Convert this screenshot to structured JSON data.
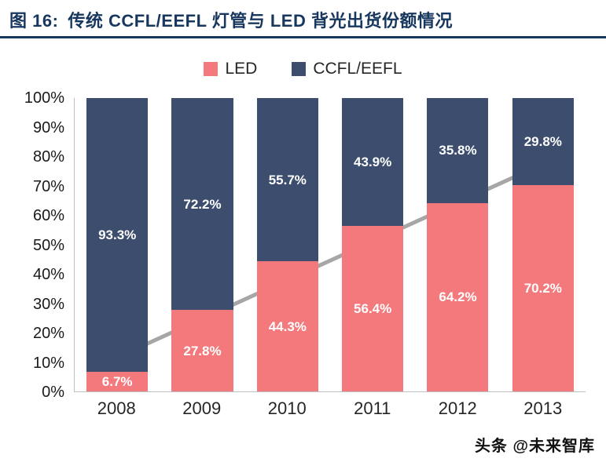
{
  "header": {
    "figure_label": "图 16:",
    "title": "传统 CCFL/EEFL 灯管与 LED 背光出货份额情况"
  },
  "legend": {
    "items": [
      {
        "label": "LED",
        "color": "#F4797C"
      },
      {
        "label": "CCFL/EEFL",
        "color": "#3C4D6E"
      }
    ]
  },
  "watermark": "头条 @未来智库",
  "colors": {
    "title": "#17375E",
    "rule": "#17375E",
    "arrow": "#A6A6A6",
    "axis": "#BFBFBF",
    "bar_value_label": "#FFFFFF"
  },
  "chart_data": {
    "type": "bar",
    "stacked": true,
    "title": "传统 CCFL/EEFL 灯管与 LED 背光出货份额情况",
    "categories": [
      "2008",
      "2009",
      "2010",
      "2011",
      "2012",
      "2013"
    ],
    "series": [
      {
        "name": "LED",
        "color": "#F4797C",
        "values": [
          6.7,
          27.8,
          44.3,
          56.4,
          64.2,
          70.2
        ]
      },
      {
        "name": "CCFL/EEFL",
        "color": "#3C4D6E",
        "values": [
          93.3,
          72.2,
          55.7,
          43.9,
          35.8,
          29.8
        ]
      }
    ],
    "xlabel": "",
    "ylabel": "",
    "ylim": [
      0,
      100
    ],
    "yticks": [
      0,
      10,
      20,
      30,
      40,
      50,
      60,
      70,
      80,
      90,
      100
    ],
    "ytick_suffix": "%",
    "value_label_suffix": "%",
    "legend_position": "top",
    "grid": false,
    "trend_arrow": {
      "color": "#A6A6A6",
      "from": {
        "x_frac": 0.05,
        "value": 9
      },
      "to": {
        "x_frac": 0.91,
        "value": 77
      }
    }
  }
}
